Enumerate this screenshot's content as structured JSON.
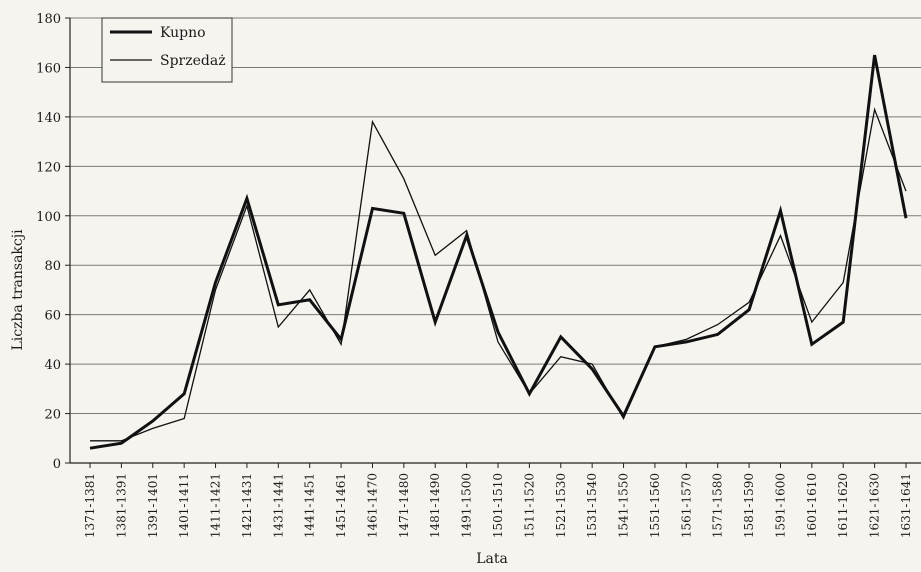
{
  "chart_data": {
    "type": "line",
    "xlabel": "Lata",
    "ylabel": "Liczba transakcji",
    "ylim": [
      0,
      180
    ],
    "yticks": [
      0,
      20,
      40,
      60,
      80,
      100,
      120,
      140,
      160,
      180
    ],
    "grid": true,
    "legend_position": "top-left",
    "categories": [
      "1371-1381",
      "1381-1391",
      "1391-1401",
      "1401-1411",
      "1411-1421",
      "1421-1431",
      "1431-1441",
      "1441-1451",
      "1451-1461",
      "1461-1470",
      "1471-1480",
      "1481-1490",
      "1491-1500",
      "1501-1510",
      "1511-1520",
      "1521-1530",
      "1531-1540",
      "1541-1550",
      "1551-1560",
      "1561-1570",
      "1571-1580",
      "1581-1590",
      "1591-1600",
      "1601-1610",
      "1611-1620",
      "1621-1630",
      "1631-1641"
    ],
    "series": [
      {
        "name": "Kupno",
        "style": "thick",
        "values": [
          6,
          8,
          17,
          28,
          73,
          107,
          64,
          66,
          50,
          103,
          101,
          57,
          92,
          53,
          28,
          51,
          38,
          19,
          47,
          49,
          52,
          62,
          102,
          48,
          57,
          165,
          99
        ]
      },
      {
        "name": "Sprzedaż",
        "style": "thin",
        "values": [
          9,
          9,
          14,
          18,
          70,
          104,
          55,
          70,
          48,
          138,
          115,
          84,
          94,
          49,
          28,
          43,
          40,
          18,
          47,
          50,
          56,
          65,
          92,
          57,
          73,
          143,
          110
        ]
      }
    ]
  }
}
